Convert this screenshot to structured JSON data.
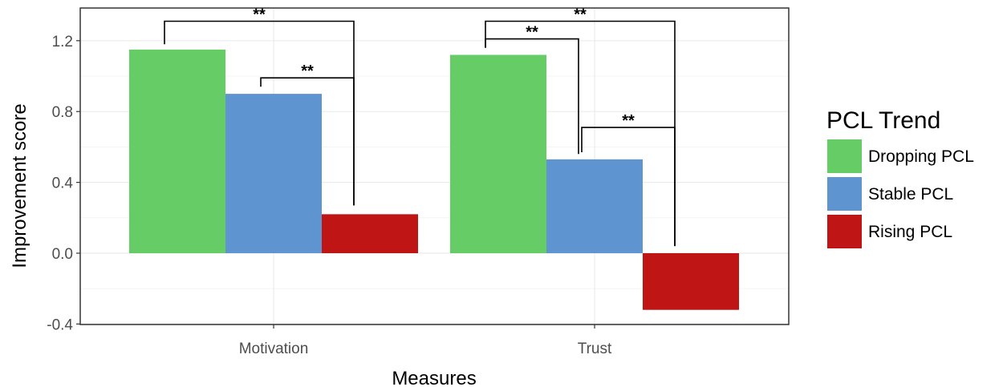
{
  "chart_data": {
    "type": "bar",
    "xlabel": "Measures",
    "ylabel": "Improvement score",
    "categories": [
      "Motivation",
      "Trust"
    ],
    "series": [
      {
        "name": "Dropping PCL",
        "color": "#66cc66",
        "values": [
          1.15,
          1.12
        ]
      },
      {
        "name": "Stable PCL",
        "color": "#5e94cf",
        "values": [
          0.9,
          0.53
        ]
      },
      {
        "name": "Rising PCL",
        "color": "#c01515",
        "values": [
          0.22,
          -0.32
        ]
      }
    ],
    "ylim": [
      -0.4,
      1.3
    ],
    "yticks": [
      "-0.4",
      "0.0",
      "0.4",
      "0.8",
      "1.2"
    ],
    "legend": {
      "title": "PCL Trend",
      "position": "right"
    },
    "grid": true,
    "annotations": [
      {
        "label": "**",
        "category": "Motivation",
        "from_series": 0,
        "to_series": 2
      },
      {
        "label": "**",
        "category": "Motivation",
        "from_series": 1,
        "to_series": 2
      },
      {
        "label": "**",
        "category": "Trust",
        "from_series": 0,
        "to_series": 2
      },
      {
        "label": "**",
        "category": "Trust",
        "from_series": 0,
        "to_series": 1
      },
      {
        "label": "**",
        "category": "Trust",
        "from_series": 1,
        "to_series": 2
      }
    ]
  }
}
